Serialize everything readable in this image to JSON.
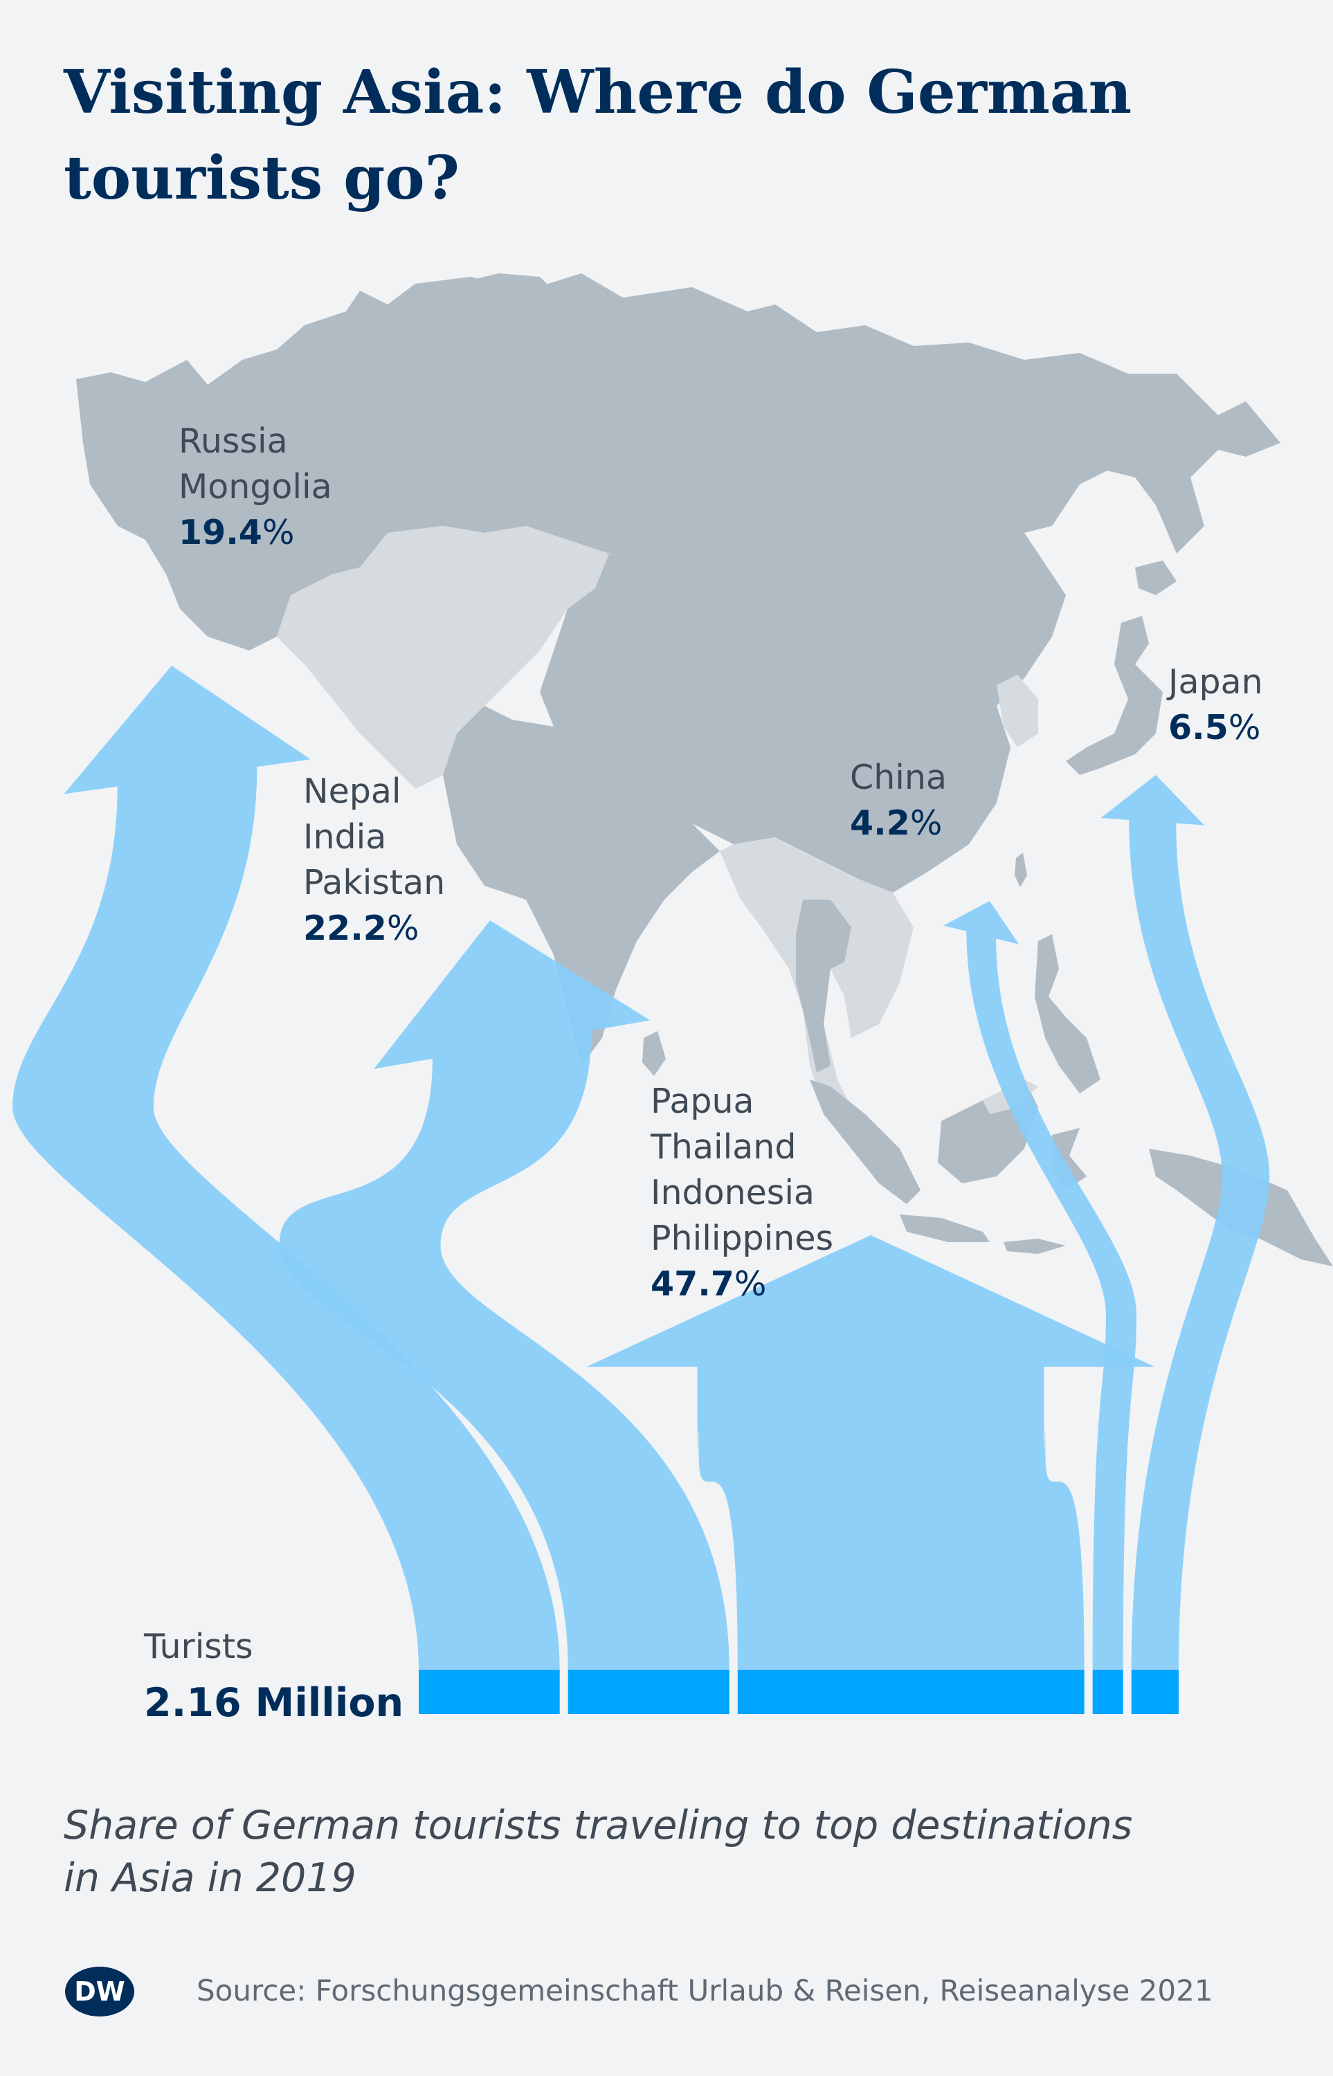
{
  "header": {
    "title_line1": "Visiting Asia: Where do German",
    "title_line2": "tourists go?"
  },
  "chart_data": {
    "type": "flow",
    "unit": "%",
    "total": {
      "label": "Turists",
      "value": "2.16 Million"
    },
    "destinations": [
      {
        "name": "Russia, Mongolia",
        "label_lines": [
          "Russia",
          "Mongolia"
        ],
        "share": 19.4
      },
      {
        "name": "Nepal, India, Pakistan",
        "label_lines": [
          "Nepal",
          "India",
          "Pakistan"
        ],
        "share": 22.2
      },
      {
        "name": "Papua, Thailand, Indonesia, Philippines",
        "label_lines": [
          "Papua",
          "Thailand",
          "Indonesia",
          "Philippines"
        ],
        "share": 47.7
      },
      {
        "name": "China",
        "label_lines": [
          "China"
        ],
        "share": 4.2
      },
      {
        "name": "Japan",
        "label_lines": [
          "Japan"
        ],
        "share": 6.5
      }
    ]
  },
  "subtitle": {
    "line1": "Share of German tourists  traveling to top destinations",
    "line2": "in Asia in 2019"
  },
  "footer": {
    "logo_text": "DW",
    "source": "Source: Forschungsgemeinschaft Urlaub & Reisen, Reiseanalyse 2021"
  },
  "colors": {
    "background": "#f1f3f5",
    "title": "#002d5a",
    "land_dark": "#b1bbc4",
    "land_light": "#d6dbe0",
    "flow": "#87cdf9",
    "flow_base": "#00a5ff"
  }
}
